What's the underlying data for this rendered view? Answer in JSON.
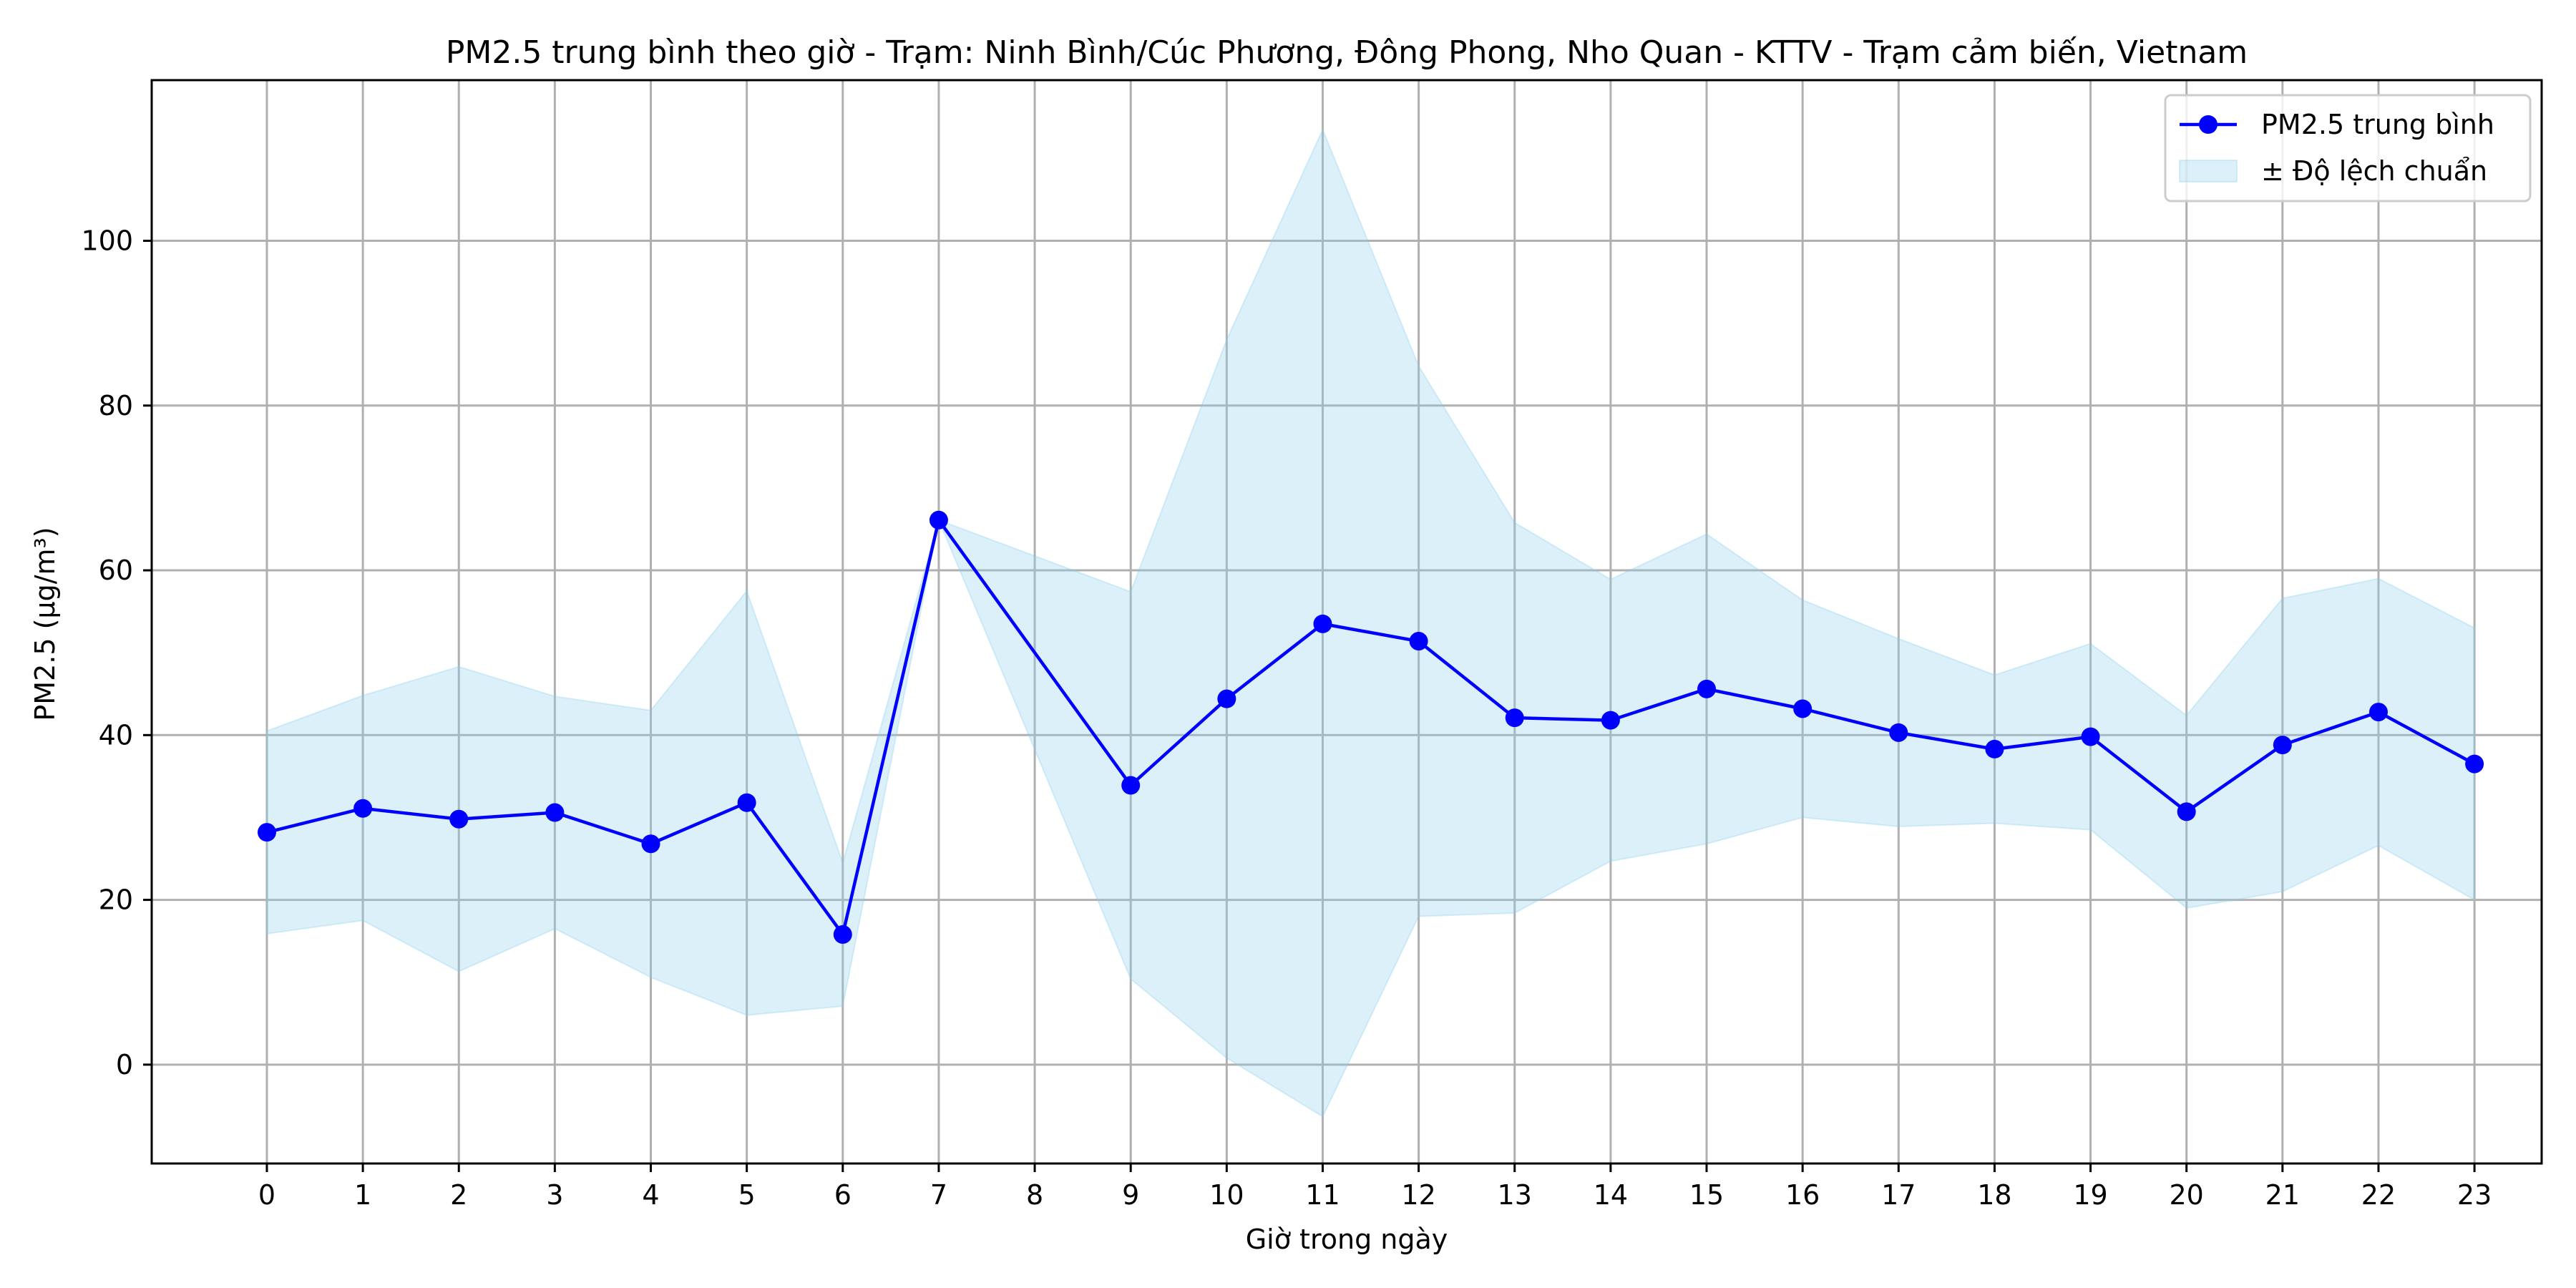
{
  "chart_data": {
    "type": "line",
    "title": "PM2.5 trung bình theo giờ - Trạm: Ninh Bình/Cúc Phương, Đông Phong, Nho Quan - KTTV - Trạm cảm biến, Vietnam",
    "xlabel": "Giờ trong ngày",
    "ylabel": "PM2.5 (µg/m³)",
    "x_ticks": [
      0,
      1,
      2,
      3,
      4,
      5,
      6,
      7,
      8,
      9,
      10,
      11,
      12,
      13,
      14,
      15,
      16,
      17,
      18,
      19,
      20,
      21,
      22,
      23
    ],
    "xlim": [
      -1.2,
      23.7
    ],
    "y_ticks": [
      0,
      20,
      40,
      60,
      80,
      100
    ],
    "ylim": [
      -12,
      119.5
    ],
    "grid": true,
    "legend_position": "top-right",
    "series": [
      {
        "name": "PM2.5 trung bình",
        "color": "#0000ff",
        "marker": "circle",
        "x": [
          0,
          1,
          2,
          3,
          4,
          5,
          6,
          7,
          9,
          10,
          11,
          12,
          13,
          14,
          15,
          16,
          17,
          18,
          19,
          20,
          21,
          22,
          23
        ],
        "values": [
          28.2,
          31.1,
          29.8,
          30.6,
          26.8,
          31.8,
          15.8,
          66.1,
          33.9,
          44.4,
          53.5,
          51.4,
          42.1,
          41.8,
          45.6,
          43.2,
          40.3,
          38.3,
          39.8,
          30.7,
          38.8,
          42.8,
          36.5
        ]
      }
    ],
    "band": {
      "name": "± Độ lệch chuẩn",
      "color": "#87ceeb",
      "x": [
        0,
        1,
        2,
        3,
        4,
        5,
        6,
        7,
        9,
        10,
        11,
        12,
        13,
        14,
        15,
        16,
        17,
        18,
        19,
        20,
        21,
        22,
        23
      ],
      "upper": [
        40.5,
        44.8,
        48.3,
        44.7,
        43.0,
        57.5,
        24.5,
        66.1,
        57.4,
        88.0,
        113.5,
        84.8,
        65.8,
        58.9,
        64.4,
        56.4,
        51.7,
        47.3,
        51.1,
        42.4,
        56.6,
        59.0,
        53.0
      ],
      "lower": [
        15.9,
        17.5,
        11.3,
        16.5,
        10.6,
        6.0,
        7.1,
        66.1,
        10.4,
        0.8,
        -6.3,
        18.0,
        18.4,
        24.7,
        26.8,
        30.0,
        28.9,
        29.3,
        28.5,
        19.0,
        21.0,
        26.6,
        20.0
      ]
    }
  }
}
